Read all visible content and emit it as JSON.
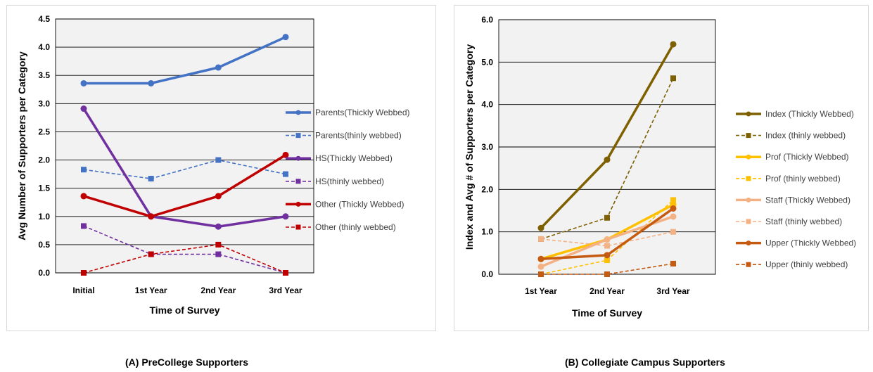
{
  "captions": {
    "a": "(A) PreCollege Supporters",
    "b": "(B) Collegiate Campus Supporters"
  },
  "chart_data": [
    {
      "type": "line",
      "title": "",
      "xlabel": "Time of Survey",
      "ylabel": "Avg Number of Supporters per Category",
      "categories": [
        "Initial",
        "1st Year",
        "2nd Year",
        "3rd Year"
      ],
      "ylim": [
        0,
        4.5
      ],
      "yticks": [
        "0.0",
        "0.5",
        "1.0",
        "1.5",
        "2.0",
        "2.5",
        "3.0",
        "3.5",
        "4.0",
        "4.5"
      ],
      "grid": true,
      "plot_background": "#f2f2f2",
      "legend_position": "right",
      "series": [
        {
          "name": "Parents(Thickly Webbed)",
          "values": [
            3.36,
            3.36,
            3.64,
            4.18
          ],
          "color": "#4472c4",
          "style": "solid",
          "marker": "circle"
        },
        {
          "name": "Parents(thinly webbed)",
          "values": [
            1.83,
            1.67,
            2.0,
            1.75
          ],
          "color": "#4472c4",
          "style": "dashed",
          "marker": "square"
        },
        {
          "name": "HS(Thickly Webbed)",
          "values": [
            2.91,
            1.0,
            0.82,
            1.0
          ],
          "color": "#7030a0",
          "style": "solid",
          "marker": "circle"
        },
        {
          "name": "HS(thinly webbed)",
          "values": [
            0.83,
            0.33,
            0.33,
            0.0
          ],
          "color": "#7030a0",
          "style": "dashed",
          "marker": "square"
        },
        {
          "name": "Other (Thickly Webbed)",
          "values": [
            1.36,
            1.0,
            1.36,
            2.09
          ],
          "color": "#c00000",
          "style": "solid",
          "marker": "circle"
        },
        {
          "name": "Other (thinly webbed)",
          "values": [
            0.0,
            0.33,
            0.5,
            0.0
          ],
          "color": "#c00000",
          "style": "dashed",
          "marker": "square"
        }
      ]
    },
    {
      "type": "line",
      "title": "",
      "xlabel": "Time of Survey",
      "ylabel": "Index and  Avg # of Supporters per Category",
      "categories": [
        "1st Year",
        "2nd Year",
        "3rd Year"
      ],
      "ylim": [
        0,
        6
      ],
      "yticks": [
        "0.0",
        "1.0",
        "2.0",
        "3.0",
        "4.0",
        "5.0",
        "6.0"
      ],
      "grid": true,
      "plot_background": "#f2f2f2",
      "legend_position": "right",
      "series": [
        {
          "name": "Index (Thickly Webbed)",
          "values": [
            1.09,
            2.7,
            5.42
          ],
          "color": "#7f6000",
          "style": "solid",
          "marker": "circle"
        },
        {
          "name": "Index (thinly webbed)",
          "values": [
            0.83,
            1.33,
            4.62
          ],
          "color": "#7f6000",
          "style": "dashed",
          "marker": "square"
        },
        {
          "name": "Prof (Thickly Webbed)",
          "values": [
            0.36,
            0.82,
            1.64
          ],
          "color": "#ffc000",
          "style": "solid",
          "marker": "circle"
        },
        {
          "name": "Prof (thinly webbed)",
          "values": [
            0.0,
            0.33,
            1.75
          ],
          "color": "#ffc000",
          "style": "dashed",
          "marker": "square"
        },
        {
          "name": "Staff (Thickly Webbed)",
          "values": [
            0.18,
            0.82,
            1.36
          ],
          "color": "#f4b183",
          "style": "solid",
          "marker": "circle"
        },
        {
          "name": "Staff (thinly webbed)",
          "values": [
            0.83,
            0.67,
            1.0
          ],
          "color": "#f4b183",
          "style": "dashed",
          "marker": "square"
        },
        {
          "name": "Upper (Thickly Webbed)",
          "values": [
            0.36,
            0.45,
            1.55
          ],
          "color": "#c55a11",
          "style": "solid",
          "marker": "circle"
        },
        {
          "name": "Upper (thinly webbed)",
          "values": [
            0.0,
            0.0,
            0.25
          ],
          "color": "#c55a11",
          "style": "dashed",
          "marker": "square"
        }
      ]
    }
  ]
}
